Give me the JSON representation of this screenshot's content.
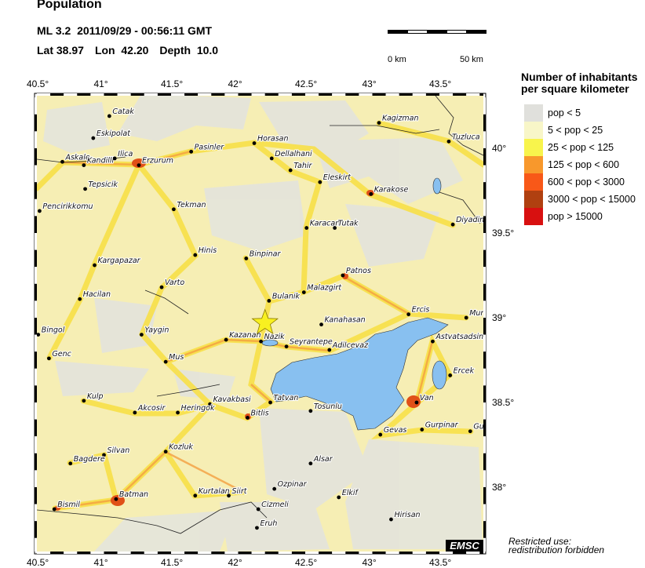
{
  "header": {
    "title": "Population",
    "magnitude": "ML 3.2",
    "datetime": "2011/09/29 - 00:56:11 GMT",
    "lat": "Lat 38.97",
    "lon": "Lon  42.20",
    "depth": "Depth  10.0"
  },
  "event": {
    "lat": 38.97,
    "lon": 42.2,
    "marker": "star-icon",
    "color": "#f8f020"
  },
  "scale_bar": {
    "start_label": "0 km",
    "end_label": "50 km"
  },
  "axes": {
    "lon_ticks": [
      "40.5°",
      "41°",
      "41.5°",
      "42°",
      "42.5°",
      "43°",
      "43.5°"
    ],
    "lon_values": [
      40.5,
      41,
      41.5,
      42,
      42.5,
      43,
      43.5
    ],
    "lat_ticks": [
      "40°",
      "39.5°",
      "39°",
      "38.5°",
      "38°"
    ],
    "lat_values": [
      40,
      39.5,
      39,
      38.5,
      38
    ]
  },
  "legend": {
    "title_line1": "Number of inhabitants",
    "title_line2": "per square kilometer",
    "items": [
      {
        "label": "pop < 5",
        "color": "#e0e0dc"
      },
      {
        "label": "5 < pop < 25",
        "color": "#f8f6c8"
      },
      {
        "label": "25 < pop < 125",
        "color": "#f8f44c"
      },
      {
        "label": "125 < pop < 600",
        "color": "#f8982c"
      },
      {
        "label": "600 < pop < 3000",
        "color": "#f85818"
      },
      {
        "label": "3000 < pop < 15000",
        "color": "#b04010"
      },
      {
        "label": "pop > 15000",
        "color": "#d81010"
      }
    ]
  },
  "cities": [
    {
      "name": "Catak",
      "lon": 41.04,
      "lat": 40.19
    },
    {
      "name": "Eskipolat",
      "lon": 40.92,
      "lat": 40.06
    },
    {
      "name": "Askale",
      "lon": 40.69,
      "lat": 39.92
    },
    {
      "name": "Kandilli",
      "lon": 40.85,
      "lat": 39.9
    },
    {
      "name": "Ilica",
      "lon": 41.08,
      "lat": 39.94
    },
    {
      "name": "Erzurum",
      "lon": 41.26,
      "lat": 39.9
    },
    {
      "name": "Pasinler",
      "lon": 41.65,
      "lat": 39.98
    },
    {
      "name": "Horasan",
      "lon": 42.12,
      "lat": 40.03
    },
    {
      "name": "Dellalhani",
      "lon": 42.25,
      "lat": 39.94
    },
    {
      "name": "Tahir",
      "lon": 42.39,
      "lat": 39.87
    },
    {
      "name": "Kagizman",
      "lon": 43.05,
      "lat": 40.15
    },
    {
      "name": "Tuzluca",
      "lon": 43.57,
      "lat": 40.04
    },
    {
      "name": "Tepsicik",
      "lon": 40.86,
      "lat": 39.76
    },
    {
      "name": "Eleskirt",
      "lon": 42.61,
      "lat": 39.8
    },
    {
      "name": "Karakose",
      "lon": 42.99,
      "lat": 39.73
    },
    {
      "name": "Pencirikkomu",
      "lon": 40.52,
      "lat": 39.63
    },
    {
      "name": "Tekman",
      "lon": 41.52,
      "lat": 39.64
    },
    {
      "name": "Karacan",
      "lon": 42.51,
      "lat": 39.53
    },
    {
      "name": "Tutak",
      "lon": 42.72,
      "lat": 39.53
    },
    {
      "name": "Diyadin",
      "lon": 43.6,
      "lat": 39.55
    },
    {
      "name": "Kargapazar",
      "lon": 40.93,
      "lat": 39.31
    },
    {
      "name": "Hinis",
      "lon": 41.68,
      "lat": 39.37
    },
    {
      "name": "Binpinar",
      "lon": 42.06,
      "lat": 39.35
    },
    {
      "name": "Patnos",
      "lon": 42.78,
      "lat": 39.25
    },
    {
      "name": "Varto",
      "lon": 41.43,
      "lat": 39.18
    },
    {
      "name": "Malazgirt",
      "lon": 42.49,
      "lat": 39.15
    },
    {
      "name": "Hacilan",
      "lon": 40.82,
      "lat": 39.11
    },
    {
      "name": "Bulanik",
      "lon": 42.23,
      "lat": 39.1
    },
    {
      "name": "Ercis",
      "lon": 43.27,
      "lat": 39.02
    },
    {
      "name": "Mur",
      "lon": 43.7,
      "lat": 39.0
    },
    {
      "name": "Bingol",
      "lon": 40.51,
      "lat": 38.9
    },
    {
      "name": "Yaygin",
      "lon": 41.28,
      "lat": 38.9
    },
    {
      "name": "Kanahasan",
      "lon": 42.62,
      "lat": 38.96
    },
    {
      "name": "Kazanan",
      "lon": 41.91,
      "lat": 38.87
    },
    {
      "name": "Nazik",
      "lon": 42.17,
      "lat": 38.86
    },
    {
      "name": "Seyrantepe",
      "lon": 42.36,
      "lat": 38.83
    },
    {
      "name": "Adilcevaz",
      "lon": 42.68,
      "lat": 38.81
    },
    {
      "name": "Astvatsadsin",
      "lon": 43.45,
      "lat": 38.86
    },
    {
      "name": "Genc",
      "lon": 40.59,
      "lat": 38.76
    },
    {
      "name": "Mus",
      "lon": 41.46,
      "lat": 38.74
    },
    {
      "name": "Ercek",
      "lon": 43.58,
      "lat": 38.66
    },
    {
      "name": "Kulp",
      "lon": 40.85,
      "lat": 38.51
    },
    {
      "name": "Kavakbasi",
      "lon": 41.79,
      "lat": 38.49
    },
    {
      "name": "Tatvan",
      "lon": 42.24,
      "lat": 38.5
    },
    {
      "name": "Van",
      "lon": 43.33,
      "lat": 38.5
    },
    {
      "name": "Akcosir",
      "lon": 41.23,
      "lat": 38.44
    },
    {
      "name": "Heringok",
      "lon": 41.55,
      "lat": 38.44
    },
    {
      "name": "Bitlis",
      "lon": 42.07,
      "lat": 38.41
    },
    {
      "name": "Tosunlu",
      "lon": 42.54,
      "lat": 38.45
    },
    {
      "name": "Gevas",
      "lon": 43.06,
      "lat": 38.31
    },
    {
      "name": "Gurpinar",
      "lon": 43.37,
      "lat": 38.34
    },
    {
      "name": "Gu",
      "lon": 43.73,
      "lat": 38.33
    },
    {
      "name": "Kozluk",
      "lon": 41.46,
      "lat": 38.21
    },
    {
      "name": "Silvan",
      "lon": 41.0,
      "lat": 38.19
    },
    {
      "name": "Bagdere",
      "lon": 40.75,
      "lat": 38.14
    },
    {
      "name": "Alsar",
      "lon": 42.54,
      "lat": 38.14
    },
    {
      "name": "Ozpinar",
      "lon": 42.27,
      "lat": 37.99
    },
    {
      "name": "Kurtalan",
      "lon": 41.68,
      "lat": 37.95
    },
    {
      "name": "Siirt",
      "lon": 41.93,
      "lat": 37.95
    },
    {
      "name": "Elkif",
      "lon": 42.75,
      "lat": 37.94
    },
    {
      "name": "Cizmeli",
      "lon": 42.15,
      "lat": 37.87
    },
    {
      "name": "Batman",
      "lon": 41.09,
      "lat": 37.93
    },
    {
      "name": "Bismil",
      "lon": 40.63,
      "lat": 37.87
    },
    {
      "name": "Eruh",
      "lon": 42.14,
      "lat": 37.76
    },
    {
      "name": "Hirisan",
      "lon": 43.14,
      "lat": 37.81
    }
  ],
  "logo": "EMSC",
  "notice": {
    "line1": "Restricted use:",
    "line2": "redistribution forbidden"
  },
  "colors": {
    "lake": "#88c0f0",
    "land_base": "#f6eeb4",
    "sparse": "#e4e4dc",
    "road": "#f8e048",
    "road_dense": "#f4a040"
  }
}
